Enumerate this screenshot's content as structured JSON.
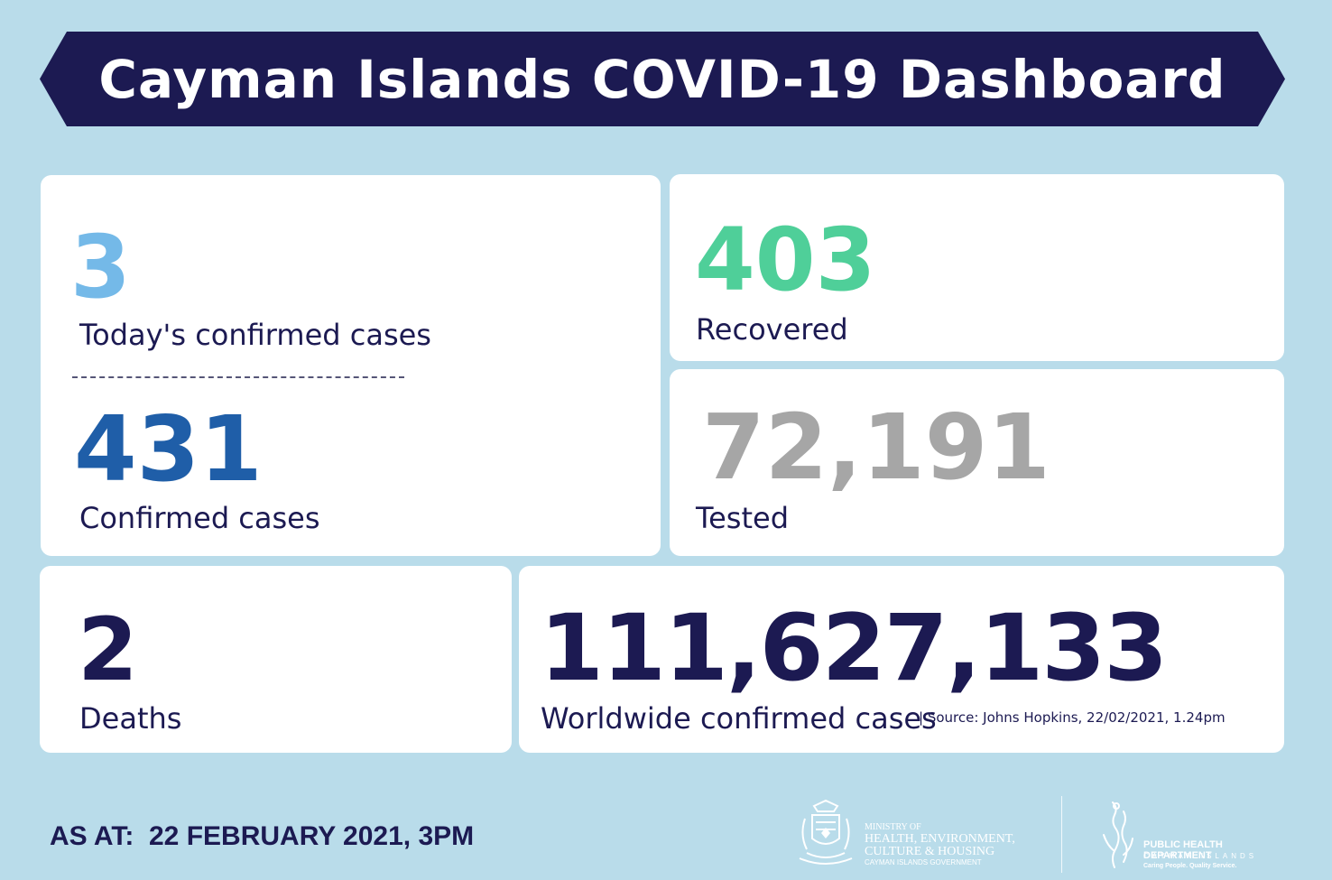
{
  "header": {
    "title": "Cayman Islands COVID-19 Dashboard"
  },
  "colors": {
    "background": "#b9dcea",
    "banner": "#1c1a52",
    "today_cases": "#74b9e8",
    "confirmed": "#1f5ea8",
    "recovered": "#4fcf99",
    "tested": "#a6a6a6",
    "deaths": "#1c1a52",
    "worldwide": "#1c1a52"
  },
  "stats": {
    "today": {
      "value": "3",
      "label": "Today's confirmed cases"
    },
    "confirmed": {
      "value": "431",
      "label": "Confirmed cases"
    },
    "recovered": {
      "value": "403",
      "label": "Recovered"
    },
    "tested": {
      "value": "72,191",
      "label": "Tested"
    },
    "deaths": {
      "value": "2",
      "label": "Deaths"
    },
    "worldwide": {
      "value": "111,627,133",
      "label": "Worldwide confirmed cases",
      "source": "| Source: Johns Hopkins, 22/02/2021, 1.24pm"
    }
  },
  "footer": {
    "as_at": "AS AT:  22 FEBRUARY 2021, 3PM",
    "ministry_logo": {
      "icon": "coat-of-arms-icon",
      "line1": "MINISTRY OF",
      "line2": "HEALTH, ENVIRONMENT,",
      "line3": "CULTURE & HOUSING",
      "line4": "CAYMAN ISLANDS GOVERNMENT"
    },
    "phd_logo": {
      "icon": "public-health-figure-icon",
      "line1": "PUBLIC HEALTH DEPARTMENT",
      "line2": "CAYMAN ISLANDS",
      "line3": "Caring People. Quality Service."
    }
  }
}
